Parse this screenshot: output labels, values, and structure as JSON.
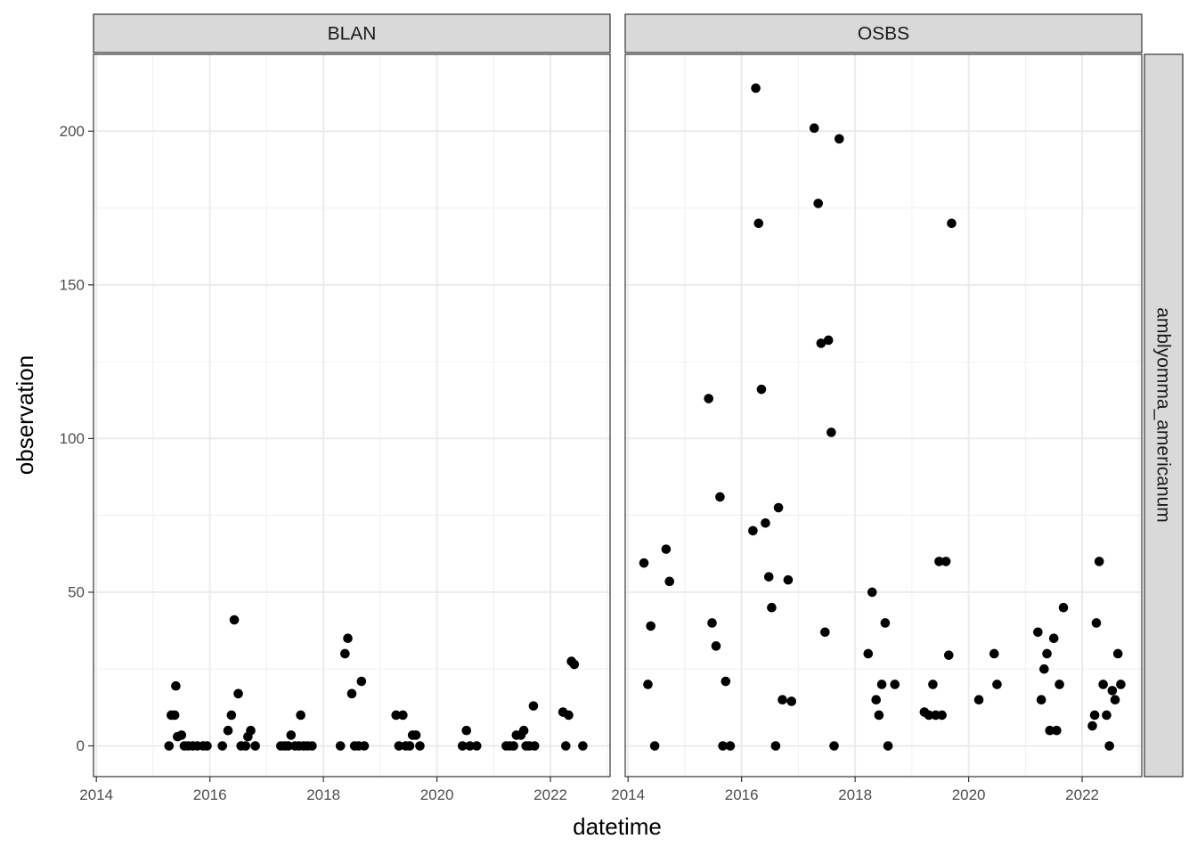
{
  "chart_data": {
    "type": "scatter",
    "facet_row_label": "amblyomma_americanum",
    "xlabel": "datetime",
    "ylabel": "observation",
    "xlim": [
      2013.95,
      2023.05
    ],
    "ylim": [
      -10,
      225
    ],
    "x_ticks": [
      2014,
      2016,
      2018,
      2020,
      2022
    ],
    "x_tick_labels": [
      "2014",
      "2016",
      "2018",
      "2020",
      "2022"
    ],
    "y_ticks": [
      0,
      50,
      100,
      150,
      200
    ],
    "y_tick_labels": [
      "0",
      "50",
      "100",
      "150",
      "200"
    ],
    "grid": true,
    "point_color": "#000000",
    "panels": [
      {
        "name": "BLAN",
        "points": [
          [
            2015.28,
            0
          ],
          [
            2015.32,
            10
          ],
          [
            2015.38,
            10
          ],
          [
            2015.4,
            19.5
          ],
          [
            2015.43,
            3
          ],
          [
            2015.5,
            3.5
          ],
          [
            2015.55,
            0
          ],
          [
            2015.62,
            0
          ],
          [
            2015.7,
            0
          ],
          [
            2015.78,
            0
          ],
          [
            2015.88,
            0
          ],
          [
            2015.95,
            0
          ],
          [
            2016.22,
            0
          ],
          [
            2016.32,
            5
          ],
          [
            2016.38,
            10
          ],
          [
            2016.43,
            41
          ],
          [
            2016.5,
            17
          ],
          [
            2016.55,
            0
          ],
          [
            2016.63,
            0
          ],
          [
            2016.67,
            3
          ],
          [
            2016.72,
            5
          ],
          [
            2016.8,
            0
          ],
          [
            2017.25,
            0
          ],
          [
            2017.32,
            0
          ],
          [
            2017.38,
            0
          ],
          [
            2017.43,
            3.5
          ],
          [
            2017.5,
            0
          ],
          [
            2017.57,
            0
          ],
          [
            2017.6,
            10
          ],
          [
            2017.65,
            0
          ],
          [
            2017.72,
            0
          ],
          [
            2017.8,
            0
          ],
          [
            2018.3,
            0
          ],
          [
            2018.38,
            30
          ],
          [
            2018.43,
            35
          ],
          [
            2018.5,
            17
          ],
          [
            2018.55,
            0
          ],
          [
            2018.62,
            0
          ],
          [
            2018.67,
            21
          ],
          [
            2018.72,
            0
          ],
          [
            2019.28,
            10
          ],
          [
            2019.33,
            0
          ],
          [
            2019.4,
            10
          ],
          [
            2019.45,
            0
          ],
          [
            2019.52,
            0
          ],
          [
            2019.57,
            3.5
          ],
          [
            2019.63,
            3.5
          ],
          [
            2019.7,
            0
          ],
          [
            2020.45,
            0
          ],
          [
            2020.52,
            5
          ],
          [
            2020.58,
            0
          ],
          [
            2020.7,
            0
          ],
          [
            2021.22,
            0
          ],
          [
            2021.28,
            0
          ],
          [
            2021.35,
            0
          ],
          [
            2021.4,
            3.5
          ],
          [
            2021.48,
            3.5
          ],
          [
            2021.53,
            5
          ],
          [
            2021.57,
            0
          ],
          [
            2021.63,
            0
          ],
          [
            2021.7,
            13
          ],
          [
            2021.72,
            0
          ],
          [
            2022.22,
            11
          ],
          [
            2022.27,
            0
          ],
          [
            2022.32,
            10
          ],
          [
            2022.37,
            27.5
          ],
          [
            2022.42,
            26.5
          ],
          [
            2022.57,
            0
          ]
        ]
      },
      {
        "name": "OSBS",
        "points": [
          [
            2014.28,
            59.5
          ],
          [
            2014.35,
            20
          ],
          [
            2014.4,
            39
          ],
          [
            2014.47,
            0
          ],
          [
            2014.67,
            64
          ],
          [
            2014.73,
            53.5
          ],
          [
            2015.42,
            113
          ],
          [
            2015.48,
            40
          ],
          [
            2015.55,
            32.5
          ],
          [
            2015.62,
            81
          ],
          [
            2015.67,
            0
          ],
          [
            2015.72,
            21
          ],
          [
            2015.8,
            0
          ],
          [
            2016.2,
            70
          ],
          [
            2016.25,
            214
          ],
          [
            2016.3,
            170
          ],
          [
            2016.35,
            116
          ],
          [
            2016.42,
            72.5
          ],
          [
            2016.48,
            55
          ],
          [
            2016.53,
            45
          ],
          [
            2016.6,
            0
          ],
          [
            2016.65,
            77.5
          ],
          [
            2016.72,
            15
          ],
          [
            2016.82,
            54
          ],
          [
            2016.88,
            14.5
          ],
          [
            2017.28,
            201
          ],
          [
            2017.35,
            176.5
          ],
          [
            2017.4,
            131
          ],
          [
            2017.47,
            37
          ],
          [
            2017.53,
            132
          ],
          [
            2017.58,
            102
          ],
          [
            2017.63,
            0
          ],
          [
            2017.72,
            197.5
          ],
          [
            2018.23,
            30
          ],
          [
            2018.3,
            50
          ],
          [
            2018.37,
            15
          ],
          [
            2018.42,
            10
          ],
          [
            2018.47,
            20
          ],
          [
            2018.53,
            40
          ],
          [
            2018.58,
            0
          ],
          [
            2018.7,
            20
          ],
          [
            2019.22,
            11
          ],
          [
            2019.3,
            10
          ],
          [
            2019.37,
            20
          ],
          [
            2019.42,
            10
          ],
          [
            2019.48,
            60
          ],
          [
            2019.53,
            10
          ],
          [
            2019.6,
            60
          ],
          [
            2019.65,
            29.5
          ],
          [
            2019.7,
            170
          ],
          [
            2020.18,
            15
          ],
          [
            2020.45,
            30
          ],
          [
            2020.5,
            20
          ],
          [
            2021.22,
            37
          ],
          [
            2021.28,
            15
          ],
          [
            2021.33,
            25
          ],
          [
            2021.38,
            30
          ],
          [
            2021.43,
            5
          ],
          [
            2021.5,
            35
          ],
          [
            2021.55,
            5
          ],
          [
            2021.6,
            20
          ],
          [
            2021.67,
            45
          ],
          [
            2022.18,
            6.5
          ],
          [
            2022.22,
            10
          ],
          [
            2022.25,
            40
          ],
          [
            2022.3,
            60
          ],
          [
            2022.37,
            20
          ],
          [
            2022.43,
            10
          ],
          [
            2022.48,
            0
          ],
          [
            2022.53,
            18
          ],
          [
            2022.58,
            15
          ],
          [
            2022.63,
            30
          ],
          [
            2022.68,
            20
          ]
        ]
      }
    ]
  }
}
